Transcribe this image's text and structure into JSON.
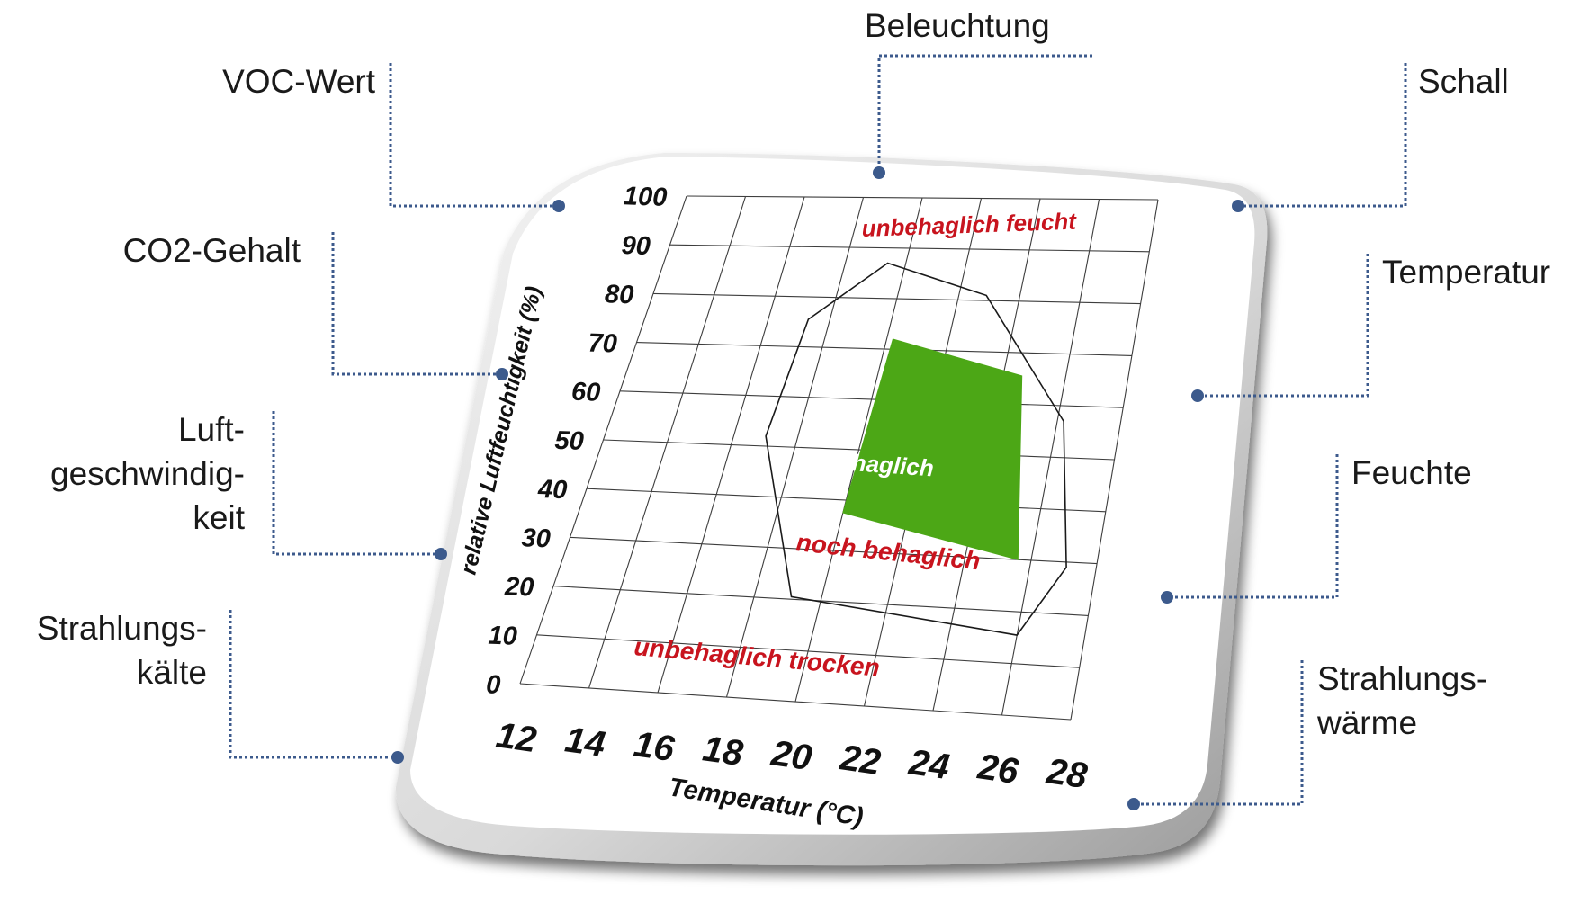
{
  "callouts": {
    "voc": "VOC-Wert",
    "beleuchtung": "Beleuchtung",
    "schall": "Schall",
    "co2": "CO2-Gehalt",
    "temperatur": "Temperatur",
    "luft": "Luft-\ngeschwindig-\nkeit",
    "feuchte": "Feuchte",
    "strahlungskaelte": "Strahlungs-\nkälte",
    "strahlungswaerme": "Strahlungs-\nwärme"
  },
  "chart": {
    "ylabel": "relative Luftfeuchtigkeit (%)",
    "xlabel": "Temperatur (°C)",
    "y_ticks": [
      "0",
      "10",
      "20",
      "30",
      "40",
      "50",
      "60",
      "70",
      "80",
      "90",
      "100"
    ],
    "x_ticks": [
      "12",
      "14",
      "16",
      "18",
      "20",
      "22",
      "24",
      "26",
      "28"
    ],
    "zones": {
      "feucht": "unbehaglich feucht",
      "behaglich": "behaglich",
      "noch": "noch behaglich",
      "trocken": "unbehaglich trocken"
    }
  },
  "colors": {
    "comfort_fill": "#4ca716",
    "zone_label": "#c8141e",
    "connector": "#3c5a8c"
  },
  "chart_data": {
    "type": "area",
    "xlabel": "Temperatur (°C)",
    "ylabel": "relative Luftfeuchtigkeit (%)",
    "xlim": [
      12,
      28
    ],
    "ylim": [
      0,
      100
    ],
    "grid": true,
    "regions": [
      {
        "label": "behaglich",
        "points": [
          [
            20.2,
            72
          ],
          [
            24.6,
            65.5
          ],
          [
            25.6,
            30
          ],
          [
            20,
            37.5
          ]
        ]
      },
      {
        "label": "noch behaglich",
        "points": [
          [
            19.4,
            87
          ],
          [
            22.9,
            81
          ],
          [
            26.2,
            57
          ],
          [
            27.1,
            29
          ],
          [
            26,
            15.5
          ],
          [
            19.1,
            20.5
          ],
          [
            17,
            52
          ],
          [
            17.3,
            75.5
          ]
        ]
      }
    ],
    "zone_labels": [
      "unbehaglich feucht",
      "behaglich",
      "noch behaglich",
      "unbehaglich trocken"
    ]
  }
}
